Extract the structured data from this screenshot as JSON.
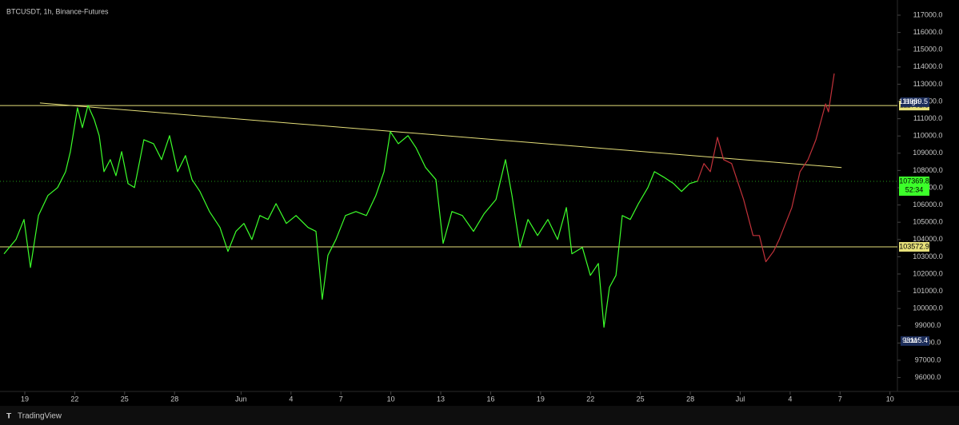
{
  "chart_data": {
    "type": "line",
    "title": "BTCUSDT, 1h, Binance-Futures",
    "footer": "TradingView",
    "xlim": [
      -1.49,
      52.35
    ],
    "ylim": [
      95100,
      117880
    ],
    "xticks": [
      {
        "value": 0,
        "label": "19"
      },
      {
        "value": 3,
        "label": "22"
      },
      {
        "value": 6,
        "label": "25"
      },
      {
        "value": 9,
        "label": "28"
      },
      {
        "value": 13,
        "label": "Jun"
      },
      {
        "value": 16,
        "label": "4"
      },
      {
        "value": 19,
        "label": "7"
      },
      {
        "value": 22,
        "label": "10"
      },
      {
        "value": 25,
        "label": "13"
      },
      {
        "value": 28,
        "label": "16"
      },
      {
        "value": 31,
        "label": "19"
      },
      {
        "value": 34,
        "label": "22"
      },
      {
        "value": 37,
        "label": "25"
      },
      {
        "value": 40,
        "label": "28"
      },
      {
        "value": 43,
        "label": "Jul"
      },
      {
        "value": 46,
        "label": "4"
      },
      {
        "value": 49,
        "label": "7"
      },
      {
        "value": 52,
        "label": "10"
      }
    ],
    "yticks": [
      {
        "value": 96000,
        "label": "96000.0"
      },
      {
        "value": 97000,
        "label": "97000.0"
      },
      {
        "value": 98000,
        "label": "98000.0"
      },
      {
        "value": 99000,
        "label": "99000.0"
      },
      {
        "value": 100000,
        "label": "100000.0"
      },
      {
        "value": 101000,
        "label": "101000.0"
      },
      {
        "value": 102000,
        "label": "102000.0"
      },
      {
        "value": 103000,
        "label": "103000.0"
      },
      {
        "value": 104000,
        "label": "104000.0"
      },
      {
        "value": 105000,
        "label": "105000.0"
      },
      {
        "value": 106000,
        "label": "106000.0"
      },
      {
        "value": 107000,
        "label": "107000.0"
      },
      {
        "value": 108000,
        "label": "108000.0"
      },
      {
        "value": 109000,
        "label": "109000.0"
      },
      {
        "value": 110000,
        "label": "110000.0"
      },
      {
        "value": 111000,
        "label": "111000.0"
      },
      {
        "value": 112000,
        "label": "112000.0"
      },
      {
        "value": 113000,
        "label": "113000.0"
      },
      {
        "value": 114000,
        "label": "114000.0"
      },
      {
        "value": 115000,
        "label": "115000.0"
      },
      {
        "value": 116000,
        "label": "116000.0"
      },
      {
        "value": 117000,
        "label": "117000.0"
      }
    ],
    "series": [
      {
        "color": "#3cff2a",
        "x": [
          -1.25,
          -0.53,
          -0.05,
          0.34,
          0.82,
          1.39,
          1.97,
          2.45,
          2.74,
          3.17,
          3.46,
          3.8,
          4.18,
          4.47,
          4.76,
          5.14,
          5.48,
          5.82,
          6.2,
          6.59,
          7.16,
          7.74,
          8.22,
          8.7,
          9.18,
          9.66,
          10.05,
          10.53,
          11.1,
          11.73,
          12.21,
          12.69,
          13.17,
          13.65,
          14.13,
          14.62,
          15.1,
          15.72,
          16.3,
          17.02,
          17.5,
          17.88,
          18.22,
          18.7,
          19.27,
          19.9,
          20.53,
          21.1,
          21.59,
          21.97,
          22.45,
          23.03,
          23.51,
          24.09,
          24.71,
          25.14,
          25.67,
          26.3,
          26.97,
          27.6,
          28.32,
          28.89,
          29.28,
          29.76,
          30.24,
          30.82,
          31.44,
          32.02,
          32.55,
          32.88,
          33.51,
          33.99,
          34.47,
          34.81,
          35.14,
          35.53,
          35.91,
          36.39,
          36.88,
          37.45,
          37.84,
          38.41,
          38.99,
          39.47,
          39.95,
          40.43
        ],
        "values": [
          103170,
          104000,
          105160,
          102380,
          105390,
          106550,
          107010,
          107930,
          109090,
          111630,
          110480,
          111770,
          110940,
          110020,
          107930,
          108630,
          107700,
          109090,
          107240,
          107010,
          109780,
          109550,
          108630,
          110020,
          107930,
          108860,
          107470,
          106780,
          105620,
          104700,
          103310,
          104470,
          104930,
          104000,
          105390,
          105160,
          106080,
          104930,
          105390,
          104700,
          104470,
          100530,
          103080,
          104000,
          105390,
          105620,
          105390,
          106550,
          107930,
          110250,
          109550,
          110020,
          109320,
          108170,
          107470,
          103770,
          105620,
          105390,
          104470,
          105480,
          106320,
          108630,
          106550,
          103540,
          105160,
          104230,
          105160,
          104000,
          105850,
          103170,
          103540,
          101920,
          102610,
          98910,
          101230,
          101920,
          105390,
          105160,
          106080,
          107010,
          107930,
          107610,
          107240,
          106780,
          107240,
          107380
        ]
      },
      {
        "color": "#c2323a",
        "x": [
          40.43,
          40.82,
          41.2,
          41.63,
          42.0,
          42.48,
          43.2,
          43.77,
          44.15,
          44.54,
          45.0,
          45.34,
          46.1,
          46.59,
          47.07,
          47.55,
          48.13,
          48.3,
          48.65
        ],
        "values": [
          107380,
          108400,
          107930,
          109920,
          108630,
          108400,
          106320,
          104230,
          104230,
          102710,
          103310,
          104000,
          105850,
          107930,
          108630,
          109780,
          111860,
          111400,
          113620
        ]
      }
    ],
    "trendline": {
      "color": "#e6e07a",
      "x": [
        0.91,
        49.09
      ],
      "values": [
        111912,
        108166
      ]
    },
    "levels": [
      {
        "value": 111761.3,
        "color": "#e6e07a"
      },
      {
        "value": 103572.9,
        "color": "#e6e07a"
      }
    ],
    "current_price": {
      "value": 107369.8,
      "countdown": "52:34",
      "color": "#3cff2a"
    },
    "extremes": [
      {
        "label": "High",
        "value": 111959.5
      },
      {
        "label": "Low",
        "value": 98115.4
      }
    ]
  }
}
